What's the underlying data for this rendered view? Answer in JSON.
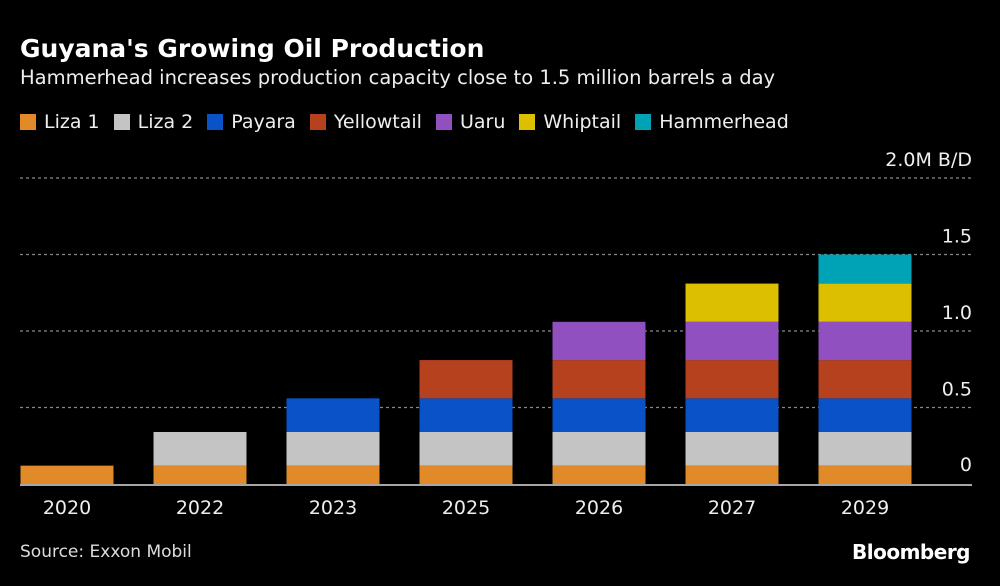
{
  "title": "Guyana's Growing Oil Production",
  "subtitle": "Hammerhead increases production capacity close to 1.5 million barrels a day",
  "source": "Source: Exxon Mobil",
  "brand": "Bloomberg",
  "chart_data": {
    "type": "bar",
    "stacked": true,
    "categories": [
      "2020",
      "2022",
      "2023",
      "2025",
      "2026",
      "2027",
      "2029"
    ],
    "ylabel": "2.0M B/D",
    "ylim": [
      0,
      2.0
    ],
    "yticks": [
      0,
      0.5,
      1.0,
      1.5,
      2.0
    ],
    "ytick_labels": [
      "0",
      "0.5",
      "1.0",
      "1.5",
      "2.0M B/D"
    ],
    "grid": true,
    "legend_position": "top-left",
    "series": [
      {
        "name": "Liza 1",
        "color": "#e08a2a",
        "values": [
          0.12,
          0.12,
          0.12,
          0.12,
          0.12,
          0.12,
          0.12
        ]
      },
      {
        "name": "Liza 2",
        "color": "#c4c4c4",
        "values": [
          0,
          0.22,
          0.22,
          0.22,
          0.22,
          0.22,
          0.22
        ]
      },
      {
        "name": "Payara",
        "color": "#0a52c7",
        "values": [
          0,
          0,
          0.22,
          0.22,
          0.22,
          0.22,
          0.22
        ]
      },
      {
        "name": "Yellowtail",
        "color": "#b5411f",
        "values": [
          0,
          0,
          0,
          0.25,
          0.25,
          0.25,
          0.25
        ]
      },
      {
        "name": "Uaru",
        "color": "#9050bf",
        "values": [
          0,
          0,
          0,
          0,
          0.25,
          0.25,
          0.25
        ]
      },
      {
        "name": "Whiptail",
        "color": "#dcc000",
        "values": [
          0,
          0,
          0,
          0,
          0,
          0.25,
          0.25
        ]
      },
      {
        "name": "Hammerhead",
        "color": "#00a2b5",
        "values": [
          0,
          0,
          0,
          0,
          0,
          0,
          0.19
        ]
      }
    ]
  }
}
